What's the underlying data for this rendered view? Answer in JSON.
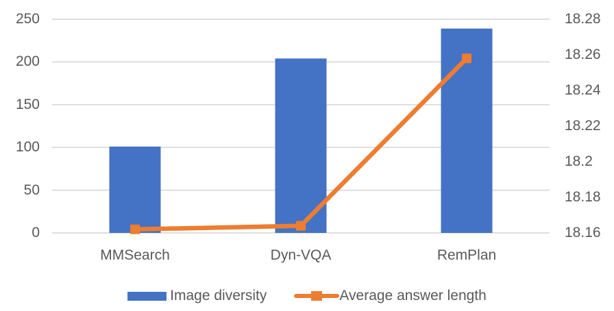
{
  "chart_data": {
    "type": "combo-bar-line",
    "title": "",
    "categories": [
      "MMSearch",
      "Dyn-VQA",
      "RemPlan"
    ],
    "series": [
      {
        "name": "Image diversity",
        "type": "bar",
        "axis": "left",
        "color": "#4472C4",
        "values": [
          101,
          204,
          239
        ]
      },
      {
        "name": "Average answer length",
        "type": "line",
        "axis": "right",
        "color": "#ED7D31",
        "marker": "square",
        "values": [
          18.162,
          18.164,
          18.258
        ]
      }
    ],
    "left_axis": {
      "min": 0,
      "max": 250,
      "ticks": [
        0,
        50,
        100,
        150,
        200,
        250
      ],
      "tick_labels": [
        "0",
        "50",
        "100",
        "150",
        "200",
        "250"
      ]
    },
    "right_axis": {
      "min": 18.16,
      "max": 18.28,
      "ticks": [
        18.16,
        18.18,
        18.2,
        18.22,
        18.24,
        18.26,
        18.28
      ],
      "tick_labels": [
        "18.16",
        "18.18",
        "18.2",
        "18.22",
        "18.24",
        "18.26",
        "18.28"
      ]
    },
    "grid": true,
    "legend_position": "bottom",
    "gridline_color": "#D9D9D9",
    "text_color": "#595959",
    "background": "#FFFFFF"
  }
}
